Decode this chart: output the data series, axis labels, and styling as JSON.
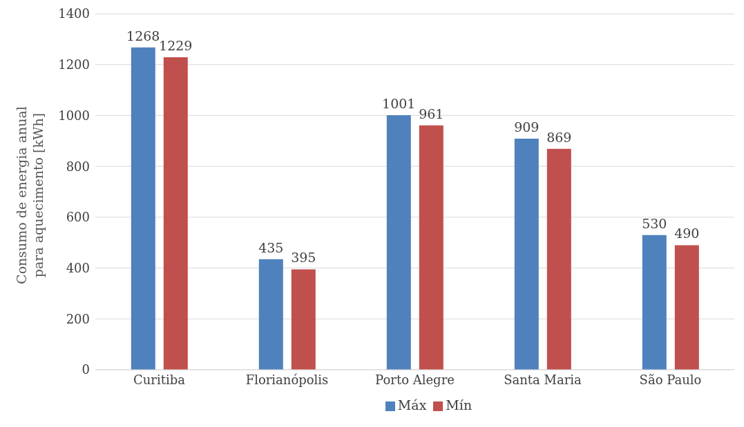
{
  "chart_data": {
    "type": "bar",
    "ylabel": "Consumo de energia anual para aquecimento [kWh]",
    "categories": [
      "Curitiba",
      "Florianópolis",
      "Porto Alegre",
      "Santa Maria",
      "São Paulo"
    ],
    "series": [
      {
        "name": "Máx",
        "color": "#4f81bd",
        "values": [
          1268,
          435,
          1001,
          909,
          530
        ]
      },
      {
        "name": "Mín",
        "color": "#c0504d",
        "values": [
          1229,
          395,
          961,
          869,
          490
        ]
      }
    ],
    "ylim": [
      0,
      1400
    ],
    "yticks": [
      0,
      200,
      400,
      600,
      800,
      1000,
      1200,
      1400
    ],
    "grid": "y",
    "legend": "bottom",
    "data_labels": true
  }
}
